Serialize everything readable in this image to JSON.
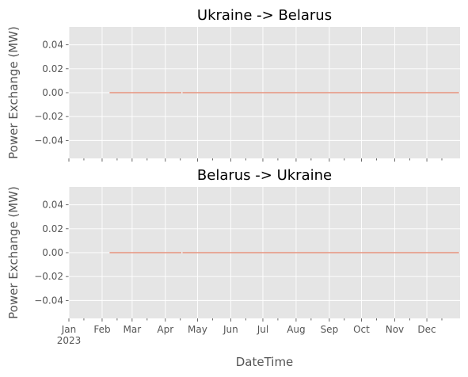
{
  "chart_data": {
    "type": "line",
    "ylabel": "Power Exchange (MW)",
    "xlabel": "DateTime",
    "xlim": [
      "2023-01-01",
      "2023-12-31"
    ],
    "ylim": [
      -0.055,
      0.055
    ],
    "yticks": [
      0.04,
      0.02,
      0.0,
      -0.02,
      -0.04
    ],
    "ytick_labels": [
      "0.04",
      "0.02",
      "0.00",
      "−0.02",
      "−0.04"
    ],
    "xticks": [
      {
        "date": "2023-01-01",
        "label": "Jan"
      },
      {
        "date": "2023-02-01",
        "label": "Feb"
      },
      {
        "date": "2023-03-01",
        "label": "Mar"
      },
      {
        "date": "2023-04-01",
        "label": "Apr"
      },
      {
        "date": "2023-05-01",
        "label": "May"
      },
      {
        "date": "2023-06-01",
        "label": "Jun"
      },
      {
        "date": "2023-07-01",
        "label": "Jul"
      },
      {
        "date": "2023-08-01",
        "label": "Aug"
      },
      {
        "date": "2023-09-01",
        "label": "Sep"
      },
      {
        "date": "2023-10-01",
        "label": "Oct"
      },
      {
        "date": "2023-11-01",
        "label": "Nov"
      },
      {
        "date": "2023-12-01",
        "label": "Dec"
      }
    ],
    "year_label": "2023",
    "grid": true,
    "line_color": "#e8937f",
    "background": "#e5e5e5",
    "panels": [
      {
        "title": "Ukraine -> Belarus",
        "segments": [
          {
            "x": [
              "2023-02-08",
              "2023-04-16"
            ],
            "y": [
              0,
              0
            ]
          },
          {
            "x": [
              "2023-04-17",
              "2023-12-31"
            ],
            "y": [
              0,
              0
            ]
          }
        ]
      },
      {
        "title": "Belarus -> Ukraine",
        "segments": [
          {
            "x": [
              "2023-02-08",
              "2023-04-16"
            ],
            "y": [
              0,
              0
            ]
          },
          {
            "x": [
              "2023-04-17",
              "2023-12-31"
            ],
            "y": [
              0,
              0
            ]
          }
        ]
      }
    ]
  }
}
